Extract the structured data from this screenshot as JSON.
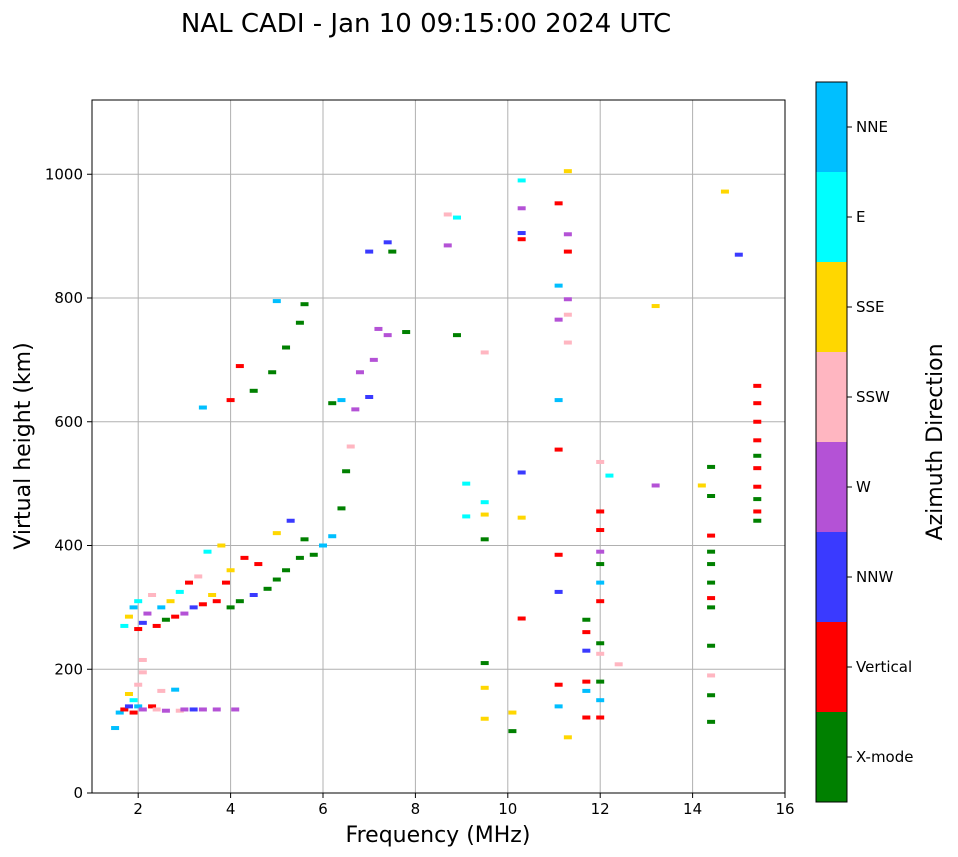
{
  "chart_data": {
    "type": "scatter",
    "title": "NAL CADI - Jan 10 09:15:00 2024 UTC",
    "xlabel": "Frequency (MHz)",
    "ylabel": "Virtual height (km)",
    "xlim": [
      1,
      16
    ],
    "ylim": [
      0,
      1120
    ],
    "xticks": [
      2,
      4,
      6,
      8,
      10,
      12,
      14,
      16
    ],
    "yticks": [
      0,
      200,
      400,
      600,
      800,
      1000
    ],
    "grid": true,
    "colorbar": {
      "title": "Azimuth Direction",
      "categories": [
        {
          "name": "X-mode",
          "color": "#008000"
        },
        {
          "name": "Vertical",
          "color": "#ff0000"
        },
        {
          "name": "NNW",
          "color": "#3a3aff"
        },
        {
          "name": "W",
          "color": "#b452d6"
        },
        {
          "name": "SSW",
          "color": "#ffb6c1"
        },
        {
          "name": "SSE",
          "color": "#ffd700"
        },
        {
          "name": "E",
          "color": "#00ffff"
        },
        {
          "name": "NNE",
          "color": "#00bfff"
        }
      ]
    },
    "points": [
      {
        "f": 1.5,
        "h": 105,
        "d": "NNE"
      },
      {
        "f": 1.6,
        "h": 130,
        "d": "NNE"
      },
      {
        "f": 1.7,
        "h": 135,
        "d": "Vertical"
      },
      {
        "f": 1.8,
        "h": 140,
        "d": "NNW"
      },
      {
        "f": 1.8,
        "h": 160,
        "d": "SSE"
      },
      {
        "f": 1.9,
        "h": 130,
        "d": "Vertical"
      },
      {
        "f": 1.9,
        "h": 150,
        "d": "E"
      },
      {
        "f": 2.0,
        "h": 140,
        "d": "NNE"
      },
      {
        "f": 2.0,
        "h": 175,
        "d": "SSW"
      },
      {
        "f": 2.1,
        "h": 135,
        "d": "W"
      },
      {
        "f": 2.1,
        "h": 195,
        "d": "SSW"
      },
      {
        "f": 2.1,
        "h": 215,
        "d": "SSW"
      },
      {
        "f": 2.3,
        "h": 140,
        "d": "Vertical"
      },
      {
        "f": 2.4,
        "h": 135,
        "d": "SSW"
      },
      {
        "f": 2.5,
        "h": 165,
        "d": "SSW"
      },
      {
        "f": 2.6,
        "h": 133,
        "d": "W"
      },
      {
        "f": 2.8,
        "h": 167,
        "d": "NNE"
      },
      {
        "f": 2.9,
        "h": 133,
        "d": "SSW"
      },
      {
        "f": 3.0,
        "h": 135,
        "d": "W"
      },
      {
        "f": 3.2,
        "h": 135,
        "d": "NNW"
      },
      {
        "f": 3.4,
        "h": 135,
        "d": "W"
      },
      {
        "f": 3.7,
        "h": 135,
        "d": "W"
      },
      {
        "f": 4.1,
        "h": 135,
        "d": "W"
      },
      {
        "f": 1.7,
        "h": 270,
        "d": "E"
      },
      {
        "f": 1.8,
        "h": 285,
        "d": "SSE"
      },
      {
        "f": 1.9,
        "h": 300,
        "d": "NNE"
      },
      {
        "f": 2.0,
        "h": 265,
        "d": "Vertical"
      },
      {
        "f": 2.0,
        "h": 310,
        "d": "E"
      },
      {
        "f": 2.1,
        "h": 275,
        "d": "NNW"
      },
      {
        "f": 2.2,
        "h": 290,
        "d": "W"
      },
      {
        "f": 2.3,
        "h": 320,
        "d": "SSW"
      },
      {
        "f": 2.4,
        "h": 270,
        "d": "Vertical"
      },
      {
        "f": 2.5,
        "h": 300,
        "d": "NNE"
      },
      {
        "f": 2.6,
        "h": 280,
        "d": "X-mode"
      },
      {
        "f": 2.7,
        "h": 310,
        "d": "SSE"
      },
      {
        "f": 2.8,
        "h": 285,
        "d": "Vertical"
      },
      {
        "f": 2.9,
        "h": 325,
        "d": "E"
      },
      {
        "f": 3.0,
        "h": 290,
        "d": "W"
      },
      {
        "f": 3.1,
        "h": 340,
        "d": "Vertical"
      },
      {
        "f": 3.2,
        "h": 300,
        "d": "NNW"
      },
      {
        "f": 3.3,
        "h": 350,
        "d": "SSW"
      },
      {
        "f": 3.4,
        "h": 305,
        "d": "Vertical"
      },
      {
        "f": 3.5,
        "h": 390,
        "d": "E"
      },
      {
        "f": 3.6,
        "h": 320,
        "d": "SSE"
      },
      {
        "f": 3.7,
        "h": 310,
        "d": "Vertical"
      },
      {
        "f": 3.8,
        "h": 400,
        "d": "SSE"
      },
      {
        "f": 3.9,
        "h": 340,
        "d": "Vertical"
      },
      {
        "f": 4.0,
        "h": 300,
        "d": "X-mode"
      },
      {
        "f": 4.0,
        "h": 360,
        "d": "SSE"
      },
      {
        "f": 4.2,
        "h": 310,
        "d": "X-mode"
      },
      {
        "f": 4.3,
        "h": 380,
        "d": "Vertical"
      },
      {
        "f": 4.5,
        "h": 320,
        "d": "NNW"
      },
      {
        "f": 4.6,
        "h": 370,
        "d": "Vertical"
      },
      {
        "f": 4.8,
        "h": 330,
        "d": "X-mode"
      },
      {
        "f": 5.0,
        "h": 345,
        "d": "X-mode"
      },
      {
        "f": 5.0,
        "h": 420,
        "d": "SSE"
      },
      {
        "f": 5.2,
        "h": 360,
        "d": "X-mode"
      },
      {
        "f": 5.3,
        "h": 440,
        "d": "NNW"
      },
      {
        "f": 5.5,
        "h": 380,
        "d": "X-mode"
      },
      {
        "f": 5.6,
        "h": 410,
        "d": "X-mode"
      },
      {
        "f": 5.8,
        "h": 385,
        "d": "X-mode"
      },
      {
        "f": 6.0,
        "h": 400,
        "d": "NNE"
      },
      {
        "f": 6.2,
        "h": 415,
        "d": "NNE"
      },
      {
        "f": 6.4,
        "h": 460,
        "d": "X-mode"
      },
      {
        "f": 6.5,
        "h": 520,
        "d": "X-mode"
      },
      {
        "f": 6.6,
        "h": 560,
        "d": "SSW"
      },
      {
        "f": 6.7,
        "h": 620,
        "d": "W"
      },
      {
        "f": 6.8,
        "h": 680,
        "d": "W"
      },
      {
        "f": 7.0,
        "h": 640,
        "d": "NNW"
      },
      {
        "f": 7.1,
        "h": 700,
        "d": "W"
      },
      {
        "f": 7.2,
        "h": 750,
        "d": "W"
      },
      {
        "f": 7.4,
        "h": 740,
        "d": "W"
      },
      {
        "f": 7.8,
        "h": 745,
        "d": "X-mode"
      },
      {
        "f": 6.2,
        "h": 630,
        "d": "X-mode"
      },
      {
        "f": 6.4,
        "h": 635,
        "d": "NNE"
      },
      {
        "f": 3.4,
        "h": 623,
        "d": "NNE"
      },
      {
        "f": 4.0,
        "h": 635,
        "d": "Vertical"
      },
      {
        "f": 4.2,
        "h": 690,
        "d": "Vertical"
      },
      {
        "f": 4.5,
        "h": 650,
        "d": "X-mode"
      },
      {
        "f": 4.9,
        "h": 680,
        "d": "X-mode"
      },
      {
        "f": 5.2,
        "h": 720,
        "d": "X-mode"
      },
      {
        "f": 5.5,
        "h": 760,
        "d": "X-mode"
      },
      {
        "f": 5.6,
        "h": 790,
        "d": "X-mode"
      },
      {
        "f": 5.0,
        "h": 795,
        "d": "NNE"
      },
      {
        "f": 7.0,
        "h": 875,
        "d": "NNW"
      },
      {
        "f": 7.4,
        "h": 890,
        "d": "NNW"
      },
      {
        "f": 7.5,
        "h": 875,
        "d": "X-mode"
      },
      {
        "f": 8.7,
        "h": 885,
        "d": "W"
      },
      {
        "f": 8.7,
        "h": 935,
        "d": "SSW"
      },
      {
        "f": 8.9,
        "h": 930,
        "d": "E"
      },
      {
        "f": 8.9,
        "h": 740,
        "d": "X-mode"
      },
      {
        "f": 9.5,
        "h": 712,
        "d": "SSW"
      },
      {
        "f": 9.1,
        "h": 500,
        "d": "E"
      },
      {
        "f": 9.1,
        "h": 447,
        "d": "E"
      },
      {
        "f": 9.5,
        "h": 470,
        "d": "E"
      },
      {
        "f": 9.5,
        "h": 450,
        "d": "SSE"
      },
      {
        "f": 9.5,
        "h": 410,
        "d": "X-mode"
      },
      {
        "f": 9.5,
        "h": 210,
        "d": "X-mode"
      },
      {
        "f": 9.5,
        "h": 170,
        "d": "SSE"
      },
      {
        "f": 9.5,
        "h": 120,
        "d": "SSE"
      },
      {
        "f": 10.1,
        "h": 130,
        "d": "SSE"
      },
      {
        "f": 10.1,
        "h": 100,
        "d": "X-mode"
      },
      {
        "f": 10.3,
        "h": 990,
        "d": "E"
      },
      {
        "f": 10.3,
        "h": 945,
        "d": "W"
      },
      {
        "f": 10.3,
        "h": 905,
        "d": "NNW"
      },
      {
        "f": 10.3,
        "h": 895,
        "d": "Vertical"
      },
      {
        "f": 10.3,
        "h": 518,
        "d": "NNW"
      },
      {
        "f": 10.3,
        "h": 445,
        "d": "SSE"
      },
      {
        "f": 10.3,
        "h": 282,
        "d": "Vertical"
      },
      {
        "f": 11.1,
        "h": 953,
        "d": "Vertical"
      },
      {
        "f": 11.1,
        "h": 820,
        "d": "NNE"
      },
      {
        "f": 11.1,
        "h": 765,
        "d": "W"
      },
      {
        "f": 11.1,
        "h": 635,
        "d": "NNE"
      },
      {
        "f": 11.1,
        "h": 555,
        "d": "Vertical"
      },
      {
        "f": 11.1,
        "h": 385,
        "d": "Vertical"
      },
      {
        "f": 11.1,
        "h": 325,
        "d": "NNW"
      },
      {
        "f": 11.1,
        "h": 175,
        "d": "Vertical"
      },
      {
        "f": 11.1,
        "h": 140,
        "d": "NNE"
      },
      {
        "f": 11.3,
        "h": 1005,
        "d": "SSE"
      },
      {
        "f": 11.3,
        "h": 903,
        "d": "W"
      },
      {
        "f": 11.3,
        "h": 875,
        "d": "Vertical"
      },
      {
        "f": 11.3,
        "h": 798,
        "d": "W"
      },
      {
        "f": 11.3,
        "h": 773,
        "d": "SSW"
      },
      {
        "f": 11.3,
        "h": 728,
        "d": "SSW"
      },
      {
        "f": 11.3,
        "h": 90,
        "d": "SSE"
      },
      {
        "f": 11.7,
        "h": 280,
        "d": "X-mode"
      },
      {
        "f": 11.7,
        "h": 260,
        "d": "Vertical"
      },
      {
        "f": 11.7,
        "h": 230,
        "d": "NNW"
      },
      {
        "f": 11.7,
        "h": 180,
        "d": "Vertical"
      },
      {
        "f": 11.7,
        "h": 165,
        "d": "NNE"
      },
      {
        "f": 11.7,
        "h": 122,
        "d": "Vertical"
      },
      {
        "f": 12.0,
        "h": 455,
        "d": "Vertical"
      },
      {
        "f": 12.0,
        "h": 425,
        "d": "Vertical"
      },
      {
        "f": 12.0,
        "h": 390,
        "d": "W"
      },
      {
        "f": 12.0,
        "h": 370,
        "d": "X-mode"
      },
      {
        "f": 12.0,
        "h": 340,
        "d": "NNE"
      },
      {
        "f": 12.0,
        "h": 310,
        "d": "Vertical"
      },
      {
        "f": 12.0,
        "h": 242,
        "d": "X-mode"
      },
      {
        "f": 12.0,
        "h": 225,
        "d": "SSW"
      },
      {
        "f": 12.0,
        "h": 180,
        "d": "X-mode"
      },
      {
        "f": 12.0,
        "h": 150,
        "d": "NNE"
      },
      {
        "f": 12.0,
        "h": 122,
        "d": "Vertical"
      },
      {
        "f": 12.0,
        "h": 535,
        "d": "SSW"
      },
      {
        "f": 12.2,
        "h": 513,
        "d": "E"
      },
      {
        "f": 12.4,
        "h": 208,
        "d": "SSW"
      },
      {
        "f": 13.2,
        "h": 787,
        "d": "SSE"
      },
      {
        "f": 13.2,
        "h": 497,
        "d": "W"
      },
      {
        "f": 14.2,
        "h": 497,
        "d": "SSE"
      },
      {
        "f": 14.4,
        "h": 527,
        "d": "X-mode"
      },
      {
        "f": 14.4,
        "h": 480,
        "d": "X-mode"
      },
      {
        "f": 14.4,
        "h": 416,
        "d": "Vertical"
      },
      {
        "f": 14.4,
        "h": 390,
        "d": "X-mode"
      },
      {
        "f": 14.4,
        "h": 370,
        "d": "X-mode"
      },
      {
        "f": 14.4,
        "h": 340,
        "d": "X-mode"
      },
      {
        "f": 14.4,
        "h": 315,
        "d": "Vertical"
      },
      {
        "f": 14.4,
        "h": 300,
        "d": "X-mode"
      },
      {
        "f": 14.4,
        "h": 238,
        "d": "X-mode"
      },
      {
        "f": 14.4,
        "h": 190,
        "d": "SSW"
      },
      {
        "f": 14.4,
        "h": 158,
        "d": "X-mode"
      },
      {
        "f": 14.4,
        "h": 115,
        "d": "X-mode"
      },
      {
        "f": 14.7,
        "h": 972,
        "d": "SSE"
      },
      {
        "f": 15.0,
        "h": 870,
        "d": "NNW"
      },
      {
        "f": 15.4,
        "h": 658,
        "d": "Vertical"
      },
      {
        "f": 15.4,
        "h": 630,
        "d": "Vertical"
      },
      {
        "f": 15.4,
        "h": 600,
        "d": "Vertical"
      },
      {
        "f": 15.4,
        "h": 570,
        "d": "Vertical"
      },
      {
        "f": 15.4,
        "h": 545,
        "d": "X-mode"
      },
      {
        "f": 15.4,
        "h": 525,
        "d": "Vertical"
      },
      {
        "f": 15.4,
        "h": 495,
        "d": "Vertical"
      },
      {
        "f": 15.4,
        "h": 475,
        "d": "X-mode"
      },
      {
        "f": 15.4,
        "h": 455,
        "d": "Vertical"
      },
      {
        "f": 15.4,
        "h": 440,
        "d": "X-mode"
      }
    ]
  }
}
